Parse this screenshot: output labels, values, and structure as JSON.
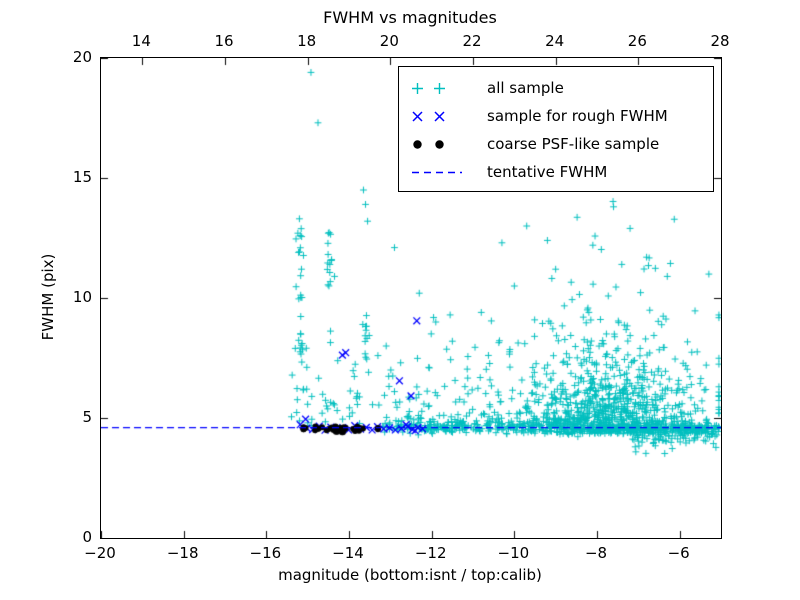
{
  "figure": {
    "window": "matplotlib figure"
  },
  "chart_data": {
    "type": "scatter",
    "title": "FWHM vs magnitudes",
    "xlabel": "magnitude (bottom:isnt / top:calib)",
    "ylabel": "FWHM (pix)",
    "xlim": [
      -20,
      -5
    ],
    "ylim": [
      0,
      20
    ],
    "grid": false,
    "legend_position": "upper right",
    "tentative_fwhm": 4.6,
    "bottom_ticks": {
      "values": [
        -20,
        -18,
        -16,
        -14,
        -12,
        -10,
        -8,
        -6
      ],
      "labels": [
        "−20",
        "−18",
        "−16",
        "−14",
        "−12",
        "−10",
        "−8",
        "−6"
      ]
    },
    "top_axis": {
      "offset": 33,
      "ticks": [
        14,
        16,
        18,
        20,
        22,
        24,
        26,
        28
      ],
      "labels": [
        "14",
        "16",
        "18",
        "20",
        "22",
        "24",
        "26",
        "28"
      ]
    },
    "yticks": {
      "values": [
        0,
        5,
        10,
        15,
        20
      ],
      "labels": [
        "0",
        "5",
        "10",
        "15",
        "20"
      ]
    },
    "colors": {
      "all_sample": "#00bfbf",
      "rough_fwhm": "#0000ff",
      "psf_like": "#000000",
      "tentative_line": "#0000ff"
    },
    "legend": [
      {
        "label": "all sample",
        "marker": "plus",
        "color": "#00bfbf"
      },
      {
        "label": "sample for rough FWHM",
        "marker": "x",
        "color": "#0000ff"
      },
      {
        "label": "coarse PSF-like sample",
        "marker": "dot",
        "color": "#000000"
      },
      {
        "label": "tentative FWHM",
        "marker": "dashed",
        "color": "#0000ff"
      }
    ],
    "series": [
      {
        "name": "all sample",
        "marker": "plus",
        "color": "#00bfbf",
        "size": 3.4,
        "clusters": [
          {
            "n": 900,
            "x": {
              "dist": "gauss",
              "mean": -7.7,
              "sd": 1.15,
              "min": -12.6,
              "max": -5.05
            },
            "y": {
              "dist": "expfloor",
              "floor": 4.35,
              "scale": 1.4,
              "max": 15.3
            }
          },
          {
            "n": 380,
            "x": {
              "dist": "uniform",
              "min": -13.2,
              "max": -5.05
            },
            "y": {
              "dist": "gauss",
              "mean": 4.6,
              "sd": 0.13
            }
          },
          {
            "n": 130,
            "x": {
              "dist": "uniform",
              "min": -7.2,
              "max": -5.05
            },
            "y": {
              "dist": "gauss",
              "mean": 4.3,
              "sd": 0.28
            }
          },
          {
            "n": 90,
            "x": {
              "dist": "uniform",
              "min": -12.6,
              "max": -10.3
            },
            "y": {
              "dist": "expfloor",
              "floor": 4.5,
              "scale": 1.2,
              "max": 10.5
            }
          },
          {
            "n": 60,
            "x": {
              "dist": "uniform",
              "min": -15.45,
              "max": -12.5
            },
            "y": {
              "dist": "expfloor",
              "floor": 4.6,
              "scale": 1.4,
              "max": 9.8
            }
          },
          {
            "n": 25,
            "x": {
              "dist": "gauss",
              "mean": -15.17,
              "sd": 0.07
            },
            "y": {
              "dist": "uniform",
              "min": 5.5,
              "max": 13.4
            }
          },
          {
            "n": 12,
            "x": {
              "dist": "gauss",
              "mean": -14.45,
              "sd": 0.05
            },
            "y": {
              "dist": "uniform",
              "min": 10.4,
              "max": 12.8
            }
          },
          {
            "n": 12,
            "x": {
              "dist": "gauss",
              "mean": -13.58,
              "sd": 0.06
            },
            "y": {
              "dist": "uniform",
              "min": 7.0,
              "max": 9.8
            }
          }
        ],
        "points": [
          [
            -14.92,
            19.4
          ],
          [
            -14.75,
            17.3
          ],
          [
            -15.2,
            13.3
          ],
          [
            -15.18,
            12.6
          ],
          [
            -15.22,
            11.9
          ],
          [
            -15.15,
            11.2
          ],
          [
            -14.5,
            12.7
          ],
          [
            -14.42,
            11.6
          ],
          [
            -14.35,
            10.9
          ],
          [
            -13.65,
            14.5
          ],
          [
            -13.6,
            13.9
          ],
          [
            -13.55,
            13.2
          ],
          [
            -12.9,
            12.1
          ],
          [
            -12.3,
            10.2
          ],
          [
            -11.9,
            9.0
          ],
          [
            -13.1,
            8.0
          ],
          [
            -13.3,
            7.6
          ],
          [
            -15.3,
            7.9
          ],
          [
            -15.1,
            6.2
          ],
          [
            -14.9,
            5.9
          ],
          [
            -12.75,
            7.3
          ],
          [
            -12.9,
            6.1
          ],
          [
            -10.3,
            12.3
          ],
          [
            -9.7,
            13.0
          ],
          [
            -9.2,
            12.4
          ],
          [
            -8.6,
            15.4
          ],
          [
            -8.3,
            14.8
          ],
          [
            -7.9,
            14.6
          ],
          [
            -7.6,
            13.8
          ],
          [
            -7.2,
            12.9
          ],
          [
            -6.8,
            11.7
          ],
          [
            -6.3,
            10.9
          ],
          [
            -9.0,
            11.2
          ],
          [
            -8.1,
            12.2
          ],
          [
            -7.4,
            11.4
          ],
          [
            -10.0,
            10.5
          ],
          [
            -10.8,
            9.4
          ],
          [
            -11.5,
            8.2
          ]
        ]
      },
      {
        "name": "sample for rough FWHM",
        "marker": "x",
        "color": "#0000ff",
        "size": 3.4,
        "points": [
          [
            -15.18,
            4.72
          ],
          [
            -15.02,
            4.58
          ],
          [
            -14.88,
            4.52
          ],
          [
            -14.72,
            4.66
          ],
          [
            -14.58,
            4.49
          ],
          [
            -14.44,
            4.62
          ],
          [
            -14.3,
            4.55
          ],
          [
            -14.15,
            4.6
          ],
          [
            -14.01,
            4.5
          ],
          [
            -13.86,
            4.68
          ],
          [
            -13.72,
            4.54
          ],
          [
            -13.58,
            4.61
          ],
          [
            -13.44,
            4.5
          ],
          [
            -13.31,
            4.64
          ],
          [
            -13.16,
            4.55
          ],
          [
            -13.02,
            4.59
          ],
          [
            -12.88,
            4.5
          ],
          [
            -12.73,
            4.56
          ],
          [
            -12.58,
            4.64
          ],
          [
            -12.47,
            4.51
          ],
          [
            -12.33,
            4.6
          ],
          [
            -12.22,
            4.55
          ],
          [
            -12.62,
            4.72
          ],
          [
            -12.4,
            4.47
          ],
          [
            -12.36,
            9.05
          ],
          [
            -14.08,
            7.72
          ],
          [
            -14.16,
            7.62
          ],
          [
            -12.78,
            6.55
          ],
          [
            -12.5,
            5.92
          ],
          [
            -15.05,
            4.95
          ]
        ]
      },
      {
        "name": "coarse PSF-like sample",
        "marker": "dot",
        "color": "#000000",
        "size": 3,
        "clusters": [
          {
            "n": 48,
            "x": {
              "dist": "gauss",
              "mean": -14.25,
              "sd": 0.5,
              "min": -15.1,
              "max": -13.3
            },
            "y": {
              "dist": "gauss",
              "mean": 4.55,
              "sd": 0.07
            }
          }
        ]
      },
      {
        "name": "tentative FWHM",
        "type": "hline",
        "y": 4.6,
        "style": "dashed",
        "color": "#0000ff"
      }
    ]
  }
}
